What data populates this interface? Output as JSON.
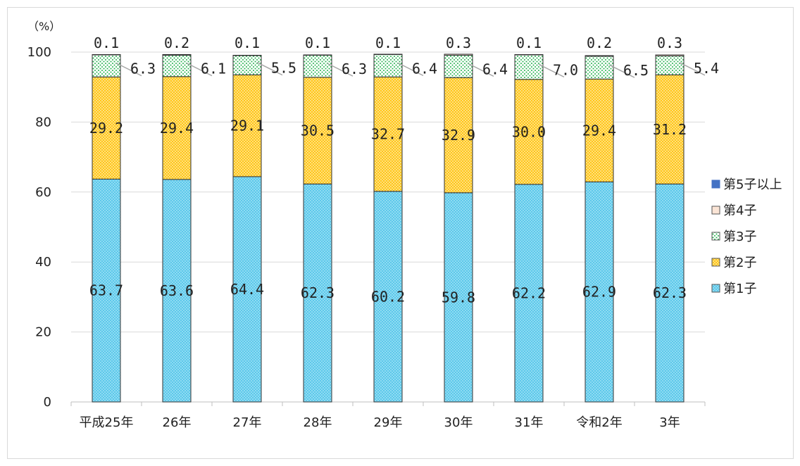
{
  "chart_data": {
    "type": "bar",
    "stacked": true,
    "unit_label": "（%）",
    "categories": [
      "平成25年",
      "26年",
      "27年",
      "28年",
      "29年",
      "30年",
      "31年",
      "令和2年",
      "3年"
    ],
    "series": [
      {
        "name": "第1子",
        "values": [
          63.7,
          63.6,
          64.4,
          62.3,
          60.2,
          59.8,
          62.2,
          62.9,
          62.3
        ],
        "color": "#4fc3e8",
        "pattern": "crosshatch"
      },
      {
        "name": "第2子",
        "values": [
          29.2,
          29.4,
          29.1,
          30.5,
          32.7,
          32.9,
          30.0,
          29.4,
          31.2
        ],
        "color": "#ffd966",
        "pattern": "crosshatch"
      },
      {
        "name": "第3子",
        "values": [
          6.3,
          6.1,
          5.5,
          6.3,
          6.4,
          6.4,
          7.0,
          6.5,
          5.4
        ],
        "color": "#22b14c",
        "pattern": "dots"
      },
      {
        "name": "第4子",
        "values": [
          0.1,
          0.2,
          0.1,
          0.1,
          0.1,
          0.3,
          0.1,
          0.2,
          0.3
        ],
        "color": "#f4b183",
        "pattern": "plain"
      },
      {
        "name": "第5子以上",
        "values": [
          0.0,
          0.0,
          0.0,
          0.0,
          0.0,
          0.0,
          0.0,
          0.0,
          0.0
        ],
        "color": "#4472c4",
        "pattern": "solid"
      }
    ],
    "labels": {
      "第1子": [
        "63.7",
        "63.6",
        "64.4",
        "62.3",
        "60.2",
        "59.8",
        "62.2",
        "62.9",
        "62.3"
      ],
      "第2子": [
        "29.2",
        "29.4",
        "29.1",
        "30.5",
        "32.7",
        "32.9",
        "30.0",
        "29.4",
        "31.2"
      ],
      "第3子": [
        "6.3",
        "6.1",
        "5.5",
        "6.3",
        "6.4",
        "6.4",
        "7.0",
        "6.5",
        "5.4"
      ],
      "第4子": [
        "0.1",
        "0.2",
        "0.1",
        "0.1",
        "0.1",
        "0.3",
        "0.1",
        "0.2",
        "0.3"
      ]
    },
    "yticks": [
      "0",
      "20",
      "40",
      "60",
      "80",
      "100"
    ],
    "ylim": [
      0,
      100
    ],
    "grid": true,
    "legend_position": "right",
    "legend_order": [
      "第5子以上",
      "第4子",
      "第3子",
      "第2子",
      "第1子"
    ]
  }
}
